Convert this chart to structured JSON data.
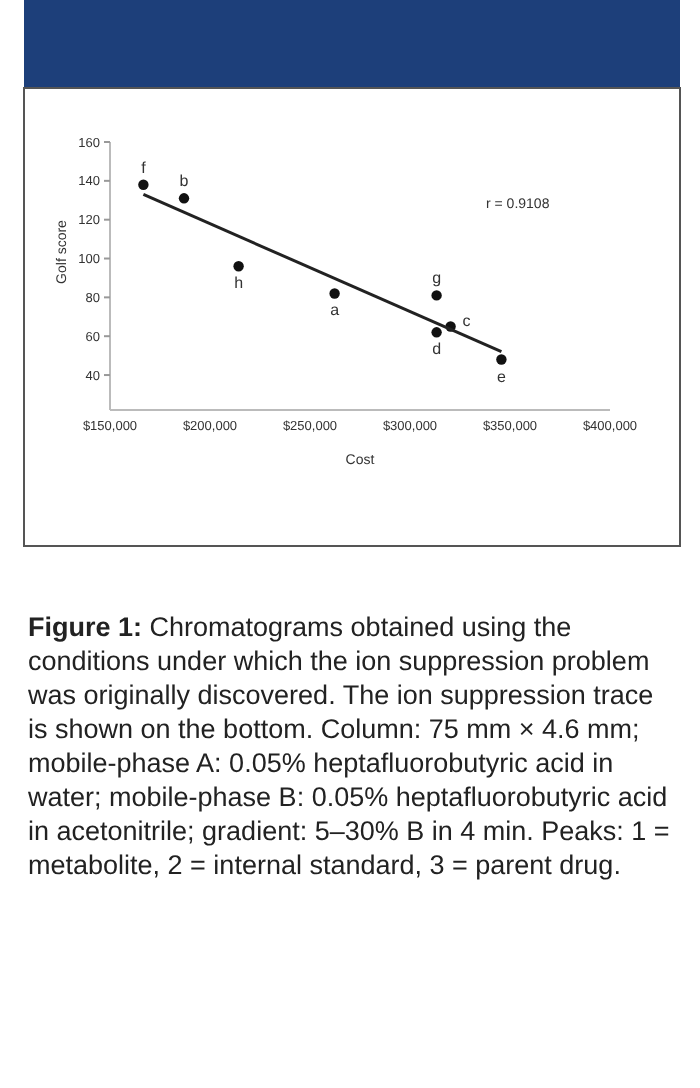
{
  "chart_data": {
    "type": "scatter",
    "xlabel": "Cost",
    "ylabel": "Golf score",
    "xlim": [
      150000,
      400000
    ],
    "ylim": [
      22,
      160
    ],
    "xticks": [
      {
        "value": 150000,
        "label": "$150,000"
      },
      {
        "value": 200000,
        "label": "$200,000"
      },
      {
        "value": 250000,
        "label": "$250,000"
      },
      {
        "value": 300000,
        "label": "$300,000"
      },
      {
        "value": 350000,
        "label": "$350,000"
      },
      {
        "value": 400000,
        "label": "$400,000"
      }
    ],
    "yticks": [
      40,
      60,
      80,
      100,
      120,
      140,
      160
    ],
    "grid": false,
    "series": [
      {
        "marker": "circle",
        "color": "#111111",
        "x": [
          166700,
          187000,
          214300,
          262300,
          313300,
          313300,
          320300,
          345700
        ],
        "values": [
          138,
          131,
          96,
          82,
          81,
          62,
          65,
          48
        ]
      },
      {
        "type": "line",
        "color": "#222222",
        "x": [
          166700,
          345700
        ],
        "values": [
          133,
          52
        ]
      }
    ],
    "annotations": [
      {
        "text": "f",
        "x": 166700,
        "y": 138
      },
      {
        "text": "b",
        "x": 187000,
        "y": 131
      },
      {
        "text": "h",
        "x": 214300,
        "y": 96
      },
      {
        "text": "a",
        "x": 262300,
        "y": 82
      },
      {
        "text": "g",
        "x": 313300,
        "y": 81
      },
      {
        "text": "d",
        "x": 313300,
        "y": 62
      },
      {
        "text": "c",
        "x": 320300,
        "y": 65
      },
      {
        "text": "e",
        "x": 345700,
        "y": 48
      },
      "r = 0.9108",
      "Figure 1: Chromatograms obtained using the conditions under which the ion suppression problem was originally discovered. The ion suppression trace is shown on the bottom. Column: 75 mm × 4.6 mm; mobile-phase A: 0.05% heptafluorobutyric acid in water; mobile-phase B: 0.05% heptafluorobutyric acid in acetonitrile; gradient: 5–30% B in 4 min. Peaks: 1 = metabolite, 2 = internal standard, 3 = parent drug."
    ]
  }
}
